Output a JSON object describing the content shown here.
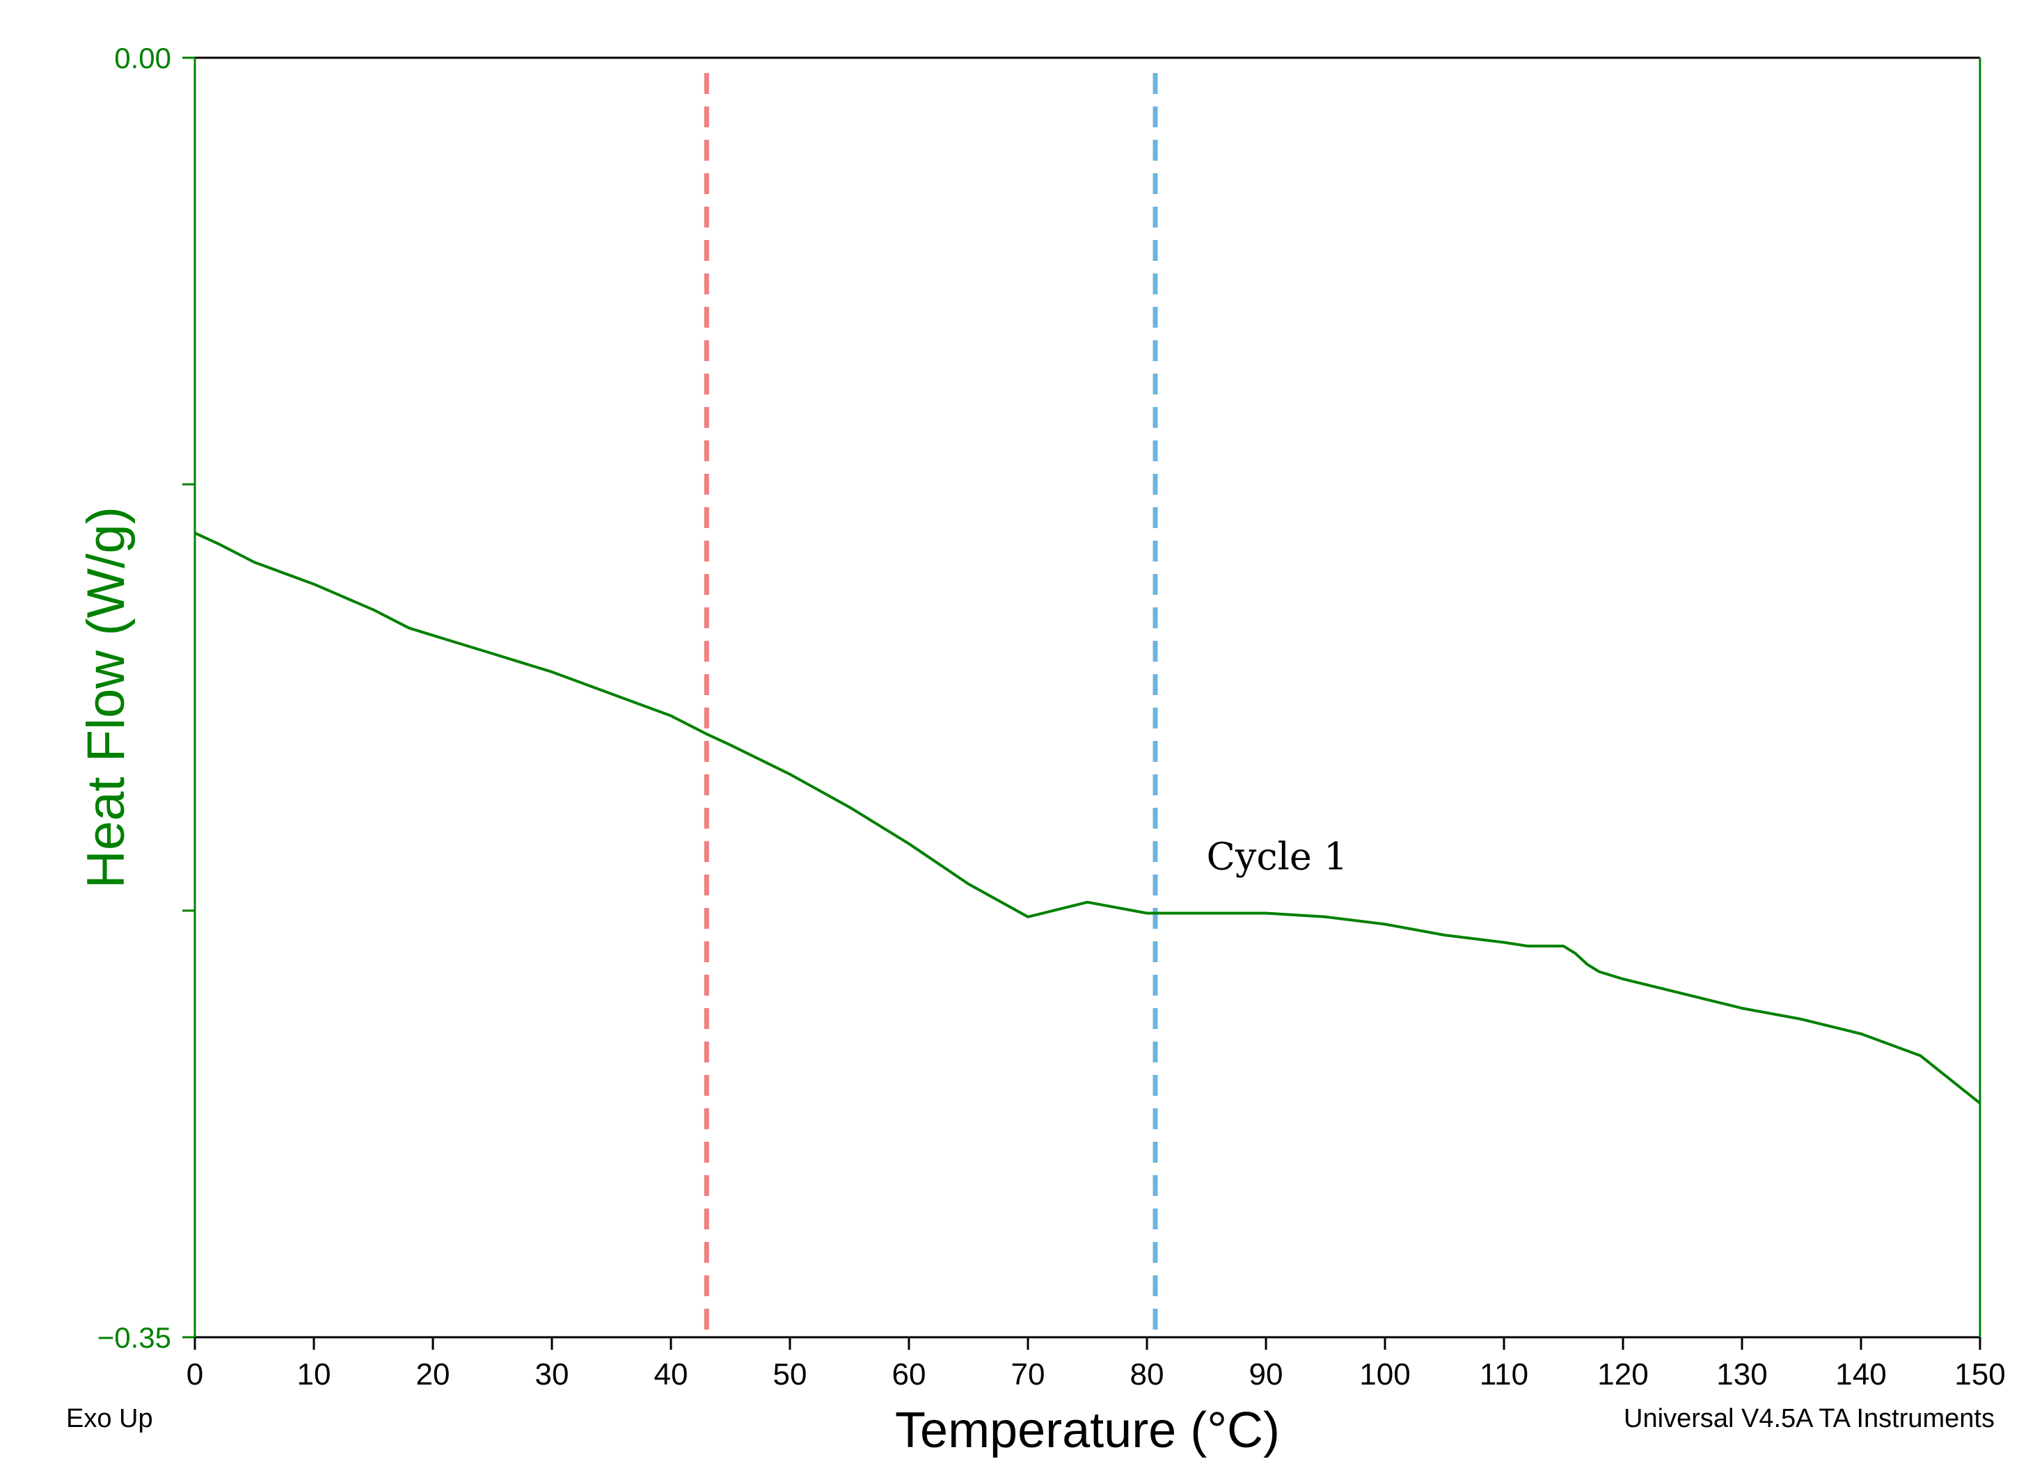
{
  "chart_data": {
    "type": "line",
    "title": "",
    "xlabel": "Temperature (°C)",
    "ylabel": "Heat Flow (W/g)",
    "xlim": [
      0,
      150
    ],
    "ylim": [
      -0.35,
      0.0
    ],
    "x_ticks": [
      0,
      10,
      20,
      30,
      40,
      50,
      60,
      70,
      80,
      90,
      100,
      110,
      120,
      130,
      140,
      150
    ],
    "x_tick_labels": [
      "0",
      "10",
      "20",
      "30",
      "40",
      "50",
      "60",
      "70",
      "80",
      "90",
      "100",
      "110",
      "120",
      "130",
      "140",
      "150"
    ],
    "y_ticks": [
      0.0,
      -0.1167,
      -0.2333,
      -0.35
    ],
    "y_tick_labels": [
      "0.00",
      "",
      "",
      "−0.35"
    ],
    "grid": false,
    "colors": {
      "series": "#008000",
      "axis_left": "#008000",
      "marker_red": "#f08080",
      "marker_blue": "#6cb4e0"
    },
    "series": [
      {
        "name": "Cycle 1",
        "x": [
          0,
          2,
          5,
          10,
          15,
          18,
          20,
          25,
          30,
          35,
          40,
          43,
          45,
          50,
          55,
          60,
          65,
          70,
          75,
          80,
          85,
          90,
          95,
          100,
          105,
          110,
          112,
          115,
          116,
          117,
          118,
          120,
          125,
          130,
          135,
          140,
          145,
          150
        ],
        "y": [
          -0.13,
          -0.133,
          -0.138,
          -0.144,
          -0.151,
          -0.156,
          -0.158,
          -0.163,
          -0.168,
          -0.174,
          -0.18,
          -0.185,
          -0.188,
          -0.196,
          -0.205,
          -0.215,
          -0.226,
          -0.235,
          -0.231,
          -0.234,
          -0.234,
          -0.234,
          -0.235,
          -0.237,
          -0.24,
          -0.242,
          -0.243,
          -0.243,
          -0.245,
          -0.248,
          -0.25,
          -0.252,
          -0.256,
          -0.26,
          -0.263,
          -0.267,
          -0.273,
          -0.286
        ]
      }
    ],
    "vlines": [
      {
        "name": "red-dashed-marker",
        "x": 43,
        "color": "#f08080",
        "style": "dashed"
      },
      {
        "name": "blue-dashed-marker",
        "x": 80.7,
        "color": "#6cb4e0",
        "style": "dashed"
      }
    ],
    "annotations": [
      {
        "text": "Cycle 1",
        "x": 85,
        "y": -0.222
      }
    ]
  },
  "footer": {
    "left": "Exo Up",
    "right": "Universal V4.5A TA Instruments"
  }
}
